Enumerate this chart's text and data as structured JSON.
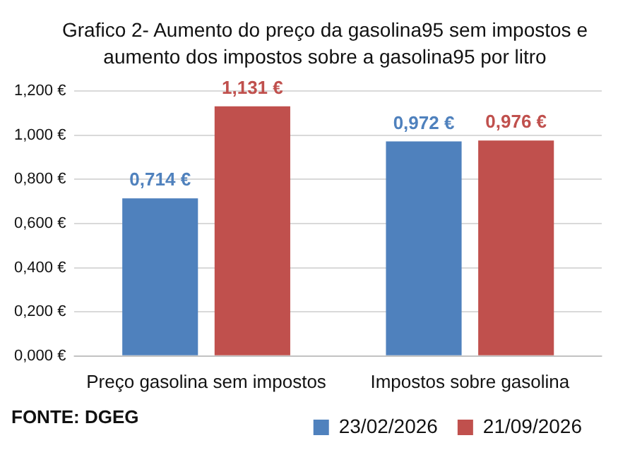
{
  "chart_data": {
    "type": "bar",
    "title": "Grafico 2- Aumento do preço da gasolina95 sem impostos e aumento dos impostos sobre a gasolina95 por litro",
    "categories": [
      "Preço gasolina sem impostos",
      "Impostos sobre gasolina"
    ],
    "series": [
      {
        "name": "23/02/2026",
        "color": "#4f81bd",
        "values": [
          0.714,
          0.972
        ],
        "value_labels": [
          "0,714 €",
          "0,972 €"
        ]
      },
      {
        "name": "21/09/2026",
        "color": "#c0504d",
        "values": [
          1.131,
          0.976
        ],
        "value_labels": [
          "1,131 €",
          "0,976 €"
        ]
      }
    ],
    "ylim": [
      0,
      1.2
    ],
    "yticks": [
      {
        "value": 0,
        "label": "0,000 €"
      },
      {
        "value": 0.2,
        "label": "0,200 €"
      },
      {
        "value": 0.4,
        "label": "0,400 €"
      },
      {
        "value": 0.6,
        "label": "0,600 €"
      },
      {
        "value": 0.8,
        "label": "0,800 €"
      },
      {
        "value": 1,
        "label": "1,000 €"
      },
      {
        "value": 1.2,
        "label": "1,200 €"
      }
    ],
    "grid": "y",
    "legend": "bottom",
    "annotations": [
      "FONTE: DGEG"
    ]
  }
}
